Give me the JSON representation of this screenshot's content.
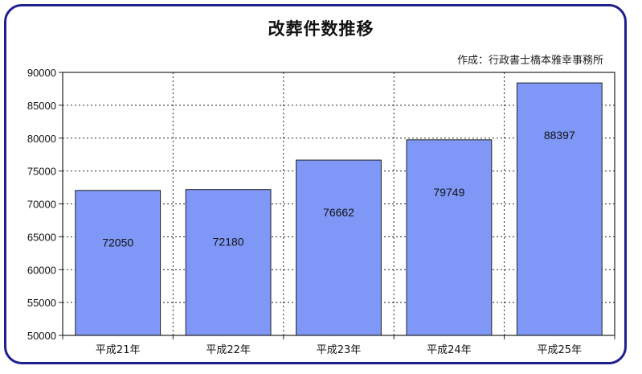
{
  "chart_data": {
    "type": "bar",
    "title": "改葬件数推移",
    "subtitle": "作成：行政書士橋本雅幸事務所",
    "categories": [
      "平成21年",
      "平成22年",
      "平成23年",
      "平成24年",
      "平成25年"
    ],
    "values": [
      72050,
      72180,
      76662,
      79749,
      88397
    ],
    "ylim": [
      50000,
      90000
    ],
    "yticks": [
      50000,
      55000,
      60000,
      65000,
      70000,
      75000,
      80000,
      85000,
      90000
    ],
    "grid": true,
    "bar_color": "#7f97f7",
    "bar_edge_color": "#222222"
  },
  "colors": {
    "frame": "#1f1f8f",
    "background": "#ffffff"
  }
}
